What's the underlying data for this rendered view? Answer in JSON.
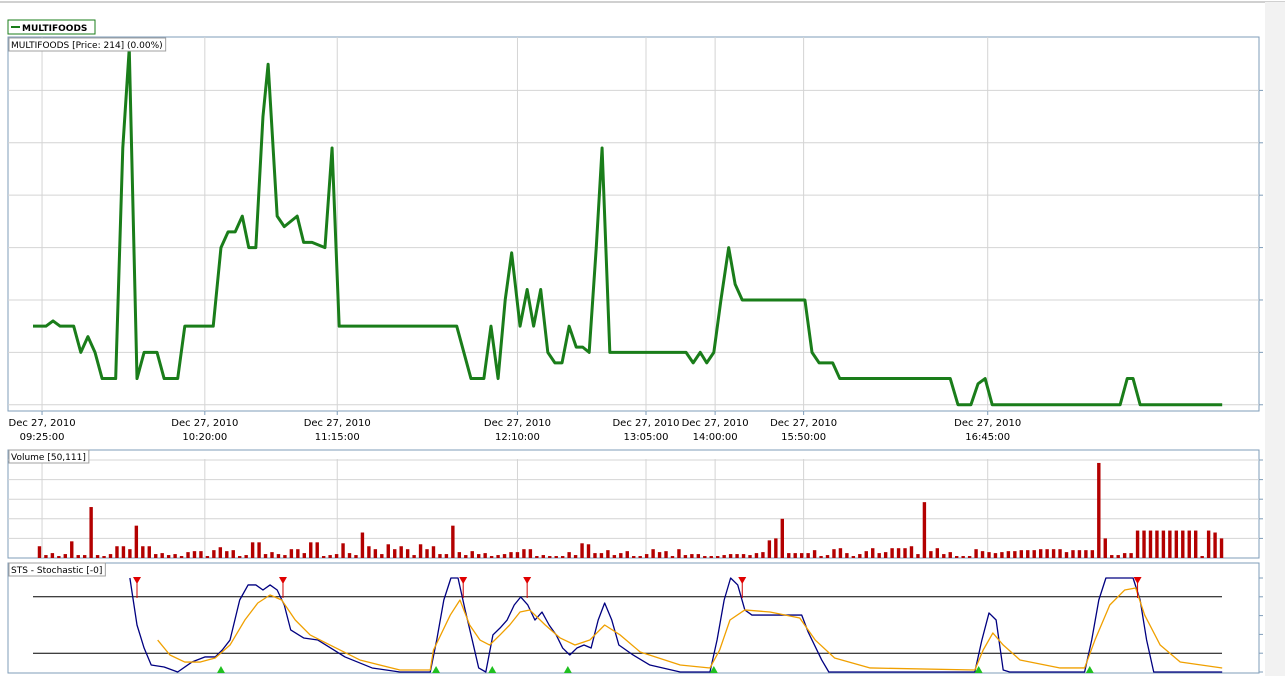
{
  "legend": {
    "name": "MULTIFOODS",
    "color": "#1a7d1a"
  },
  "chart_data": [
    {
      "type": "line",
      "title": "MULTIFOODS [Price: 214] (0.00%)",
      "series": [
        {
          "name": "MULTIFOODS",
          "color": "#1a7d1a",
          "x": [
            -1.0,
            1.0,
            2.1,
            3.2,
            5.3,
            6.4,
            7.5,
            8.6,
            9.7,
            11.8,
            12.9,
            13.9,
            15.1,
            16.2,
            18.2,
            19.3,
            21.4,
            22.5,
            26.9,
            28.1,
            29.2,
            30.3,
            31.4,
            32.4,
            33.5,
            34.6,
            35.4,
            36.8,
            37.9,
            39.9,
            40.9,
            42.2,
            44.2,
            45.3,
            46.4,
            64.6,
            66.8,
            68.8,
            69.9,
            71.0,
            72.1,
            73.1,
            74.4,
            75.5,
            76.5,
            77.6,
            78.7,
            79.8,
            80.9,
            82.0,
            83.1,
            84.1,
            85.1,
            86.2,
            87.1,
            88.3,
            100.1,
            101.2,
            102.3,
            103.3,
            104.4,
            105.5,
            106.7,
            107.7,
            108.8,
            118.5,
            119.6,
            120.7,
            122.8,
            123.9,
            141.0,
            142.2,
            144.2,
            145.3,
            146.4,
            147.5,
            167.3,
            168.4,
            169.3,
            170.4,
            183.1
          ],
          "values": [
            215.5,
            215.5,
            215.6,
            215.5,
            215.5,
            215.0,
            215.3,
            215.0,
            214.5,
            214.5,
            218.9,
            220.8,
            214.5,
            215.0,
            215.0,
            214.5,
            214.5,
            215.5,
            215.5,
            217.0,
            217.3,
            217.3,
            217.6,
            217.0,
            217.0,
            219.5,
            220.5,
            217.6,
            217.4,
            217.6,
            217.1,
            217.1,
            217.0,
            218.9,
            215.5,
            215.5,
            214.5,
            214.5,
            215.5,
            214.5,
            216.0,
            216.9,
            215.5,
            216.2,
            215.5,
            216.2,
            215.0,
            214.8,
            214.8,
            215.5,
            215.1,
            215.1,
            215.0,
            217.0,
            218.9,
            215.0,
            215.0,
            214.8,
            215.0,
            214.8,
            215.0,
            216.0,
            217.0,
            216.3,
            216.0,
            216.0,
            215.0,
            214.8,
            214.8,
            214.5,
            214.5,
            214.0,
            214.0,
            214.4,
            214.5,
            214.0,
            214.0,
            214.5,
            214.5,
            214.0,
            214.0
          ]
        }
      ],
      "xlim": [
        -1,
        184
      ],
      "ylim": [
        213.9,
        221
      ],
      "yticks": [
        214,
        215,
        216,
        217,
        218,
        219,
        220
      ],
      "xticks": [
        {
          "value": 0.4,
          "label": [
            "Dec 27, 2010",
            "09:25:00"
          ]
        },
        {
          "value": 25.6,
          "label": [
            "Dec 27, 2010",
            "10:20:00"
          ]
        },
        {
          "value": 46.1,
          "label": [
            "Dec 27, 2010",
            "11:15:00"
          ]
        },
        {
          "value": 74.0,
          "label": [
            "Dec 27, 2010",
            "12:10:00"
          ]
        },
        {
          "value": 93.9,
          "label": [
            "Dec 27, 2010",
            "13:05:00"
          ]
        },
        {
          "value": 104.6,
          "label": [
            "Dec 27, 2010",
            "14:00:00"
          ]
        },
        {
          "value": 118.3,
          "label": [
            "Dec 27, 2010",
            "15:50:00"
          ]
        },
        {
          "value": 146.8,
          "label": [
            "Dec 27, 2010",
            "16:45:00"
          ]
        }
      ],
      "grid": true
    },
    {
      "type": "bar",
      "title": "Volume [50,111]",
      "color": "#b30000",
      "values": [
        12,
        3,
        5,
        2,
        4,
        17,
        3,
        3,
        52,
        3,
        2,
        4,
        12,
        12,
        9,
        33,
        12,
        12,
        4,
        5,
        3,
        4,
        2,
        6,
        7,
        7,
        2,
        8,
        11,
        7,
        8,
        2,
        3,
        16,
        16,
        4,
        6,
        4,
        3,
        9,
        9,
        5,
        16,
        16,
        2,
        3,
        4,
        15,
        5,
        3,
        26,
        12,
        9,
        4,
        14,
        9,
        12,
        9,
        3,
        14,
        9,
        12,
        4,
        4,
        33,
        6,
        3,
        7,
        4,
        5,
        2,
        3,
        4,
        6,
        6,
        9,
        9,
        2,
        3,
        2,
        2,
        2,
        6,
        3,
        15,
        14,
        5,
        5,
        8,
        3,
        5,
        7,
        2,
        2,
        4,
        9,
        6,
        7,
        2,
        9,
        3,
        4,
        4,
        2,
        2,
        2,
        3,
        4,
        4,
        4,
        3,
        5,
        6,
        18,
        20,
        40,
        5,
        5,
        5,
        5,
        8,
        2,
        3,
        9,
        10,
        5,
        2,
        4,
        7,
        10,
        5,
        6,
        10,
        10,
        10,
        12,
        4,
        57,
        7,
        10,
        4,
        6,
        2,
        2,
        2,
        9,
        7,
        6,
        5,
        6,
        7,
        7,
        8,
        8,
        8,
        9,
        9,
        9,
        9,
        6,
        8,
        8,
        8,
        8,
        97,
        20,
        3,
        3,
        5,
        5,
        28,
        28,
        28,
        28,
        28,
        28,
        28,
        28,
        28,
        28,
        2,
        28,
        26,
        20
      ],
      "xlim": [
        -1,
        184
      ],
      "ylim": [
        0,
        100
      ],
      "yticks": [
        20,
        40,
        60,
        80,
        100
      ]
    },
    {
      "type": "line",
      "title": "STS - Stochastic [-0]",
      "series": [
        {
          "color": "#000080",
          "x": [
            14.0,
            15.1,
            16.2,
            17.3,
            19.3,
            21.4,
            23.6,
            25.6,
            27.2,
            28.3,
            29.5,
            31.0,
            32.3,
            33.5,
            34.6,
            35.7,
            36.8,
            37.9,
            38.9,
            40.9,
            43.1,
            45.1,
            47.3,
            51.5,
            55.8,
            60.5,
            61.5,
            62.6,
            63.7,
            64.8,
            65.9,
            67.0,
            68.0,
            69.1,
            70.2,
            71.3,
            72.4,
            73.5,
            74.5,
            75.6,
            76.7,
            77.8,
            78.9,
            80.0,
            81.0,
            82.1,
            83.2,
            84.3,
            85.4,
            86.5,
            87.5,
            88.6,
            89.7,
            91.9,
            94.5,
            99.2,
            103.8,
            104.9,
            106.0,
            107.0,
            108.1,
            109.2,
            110.3,
            118.0,
            119.0,
            121.1,
            122.2,
            144.8,
            145.9,
            147.0,
            148.1,
            149.2,
            150.2,
            161.8,
            162.9,
            164.0,
            165.1,
            169.3,
            170.4,
            171.4,
            172.5,
            183.1
          ],
          "values": [
            100,
            50,
            25.5,
            7.4,
            5.3,
            0,
            10.6,
            16,
            16,
            23.4,
            34,
            76.6,
            92.6,
            92.6,
            87.2,
            92.6,
            87.2,
            71.3,
            44.7,
            36.2,
            34,
            25.5,
            16,
            4.3,
            0,
            0,
            34,
            76.6,
            100,
            100,
            66,
            34,
            4.3,
            0,
            39.4,
            46.8,
            55.3,
            71.3,
            79.8,
            71.3,
            55.3,
            63.8,
            50,
            39.4,
            25.5,
            18.1,
            25.5,
            28.7,
            25.5,
            55.3,
            73.4,
            55.3,
            28.7,
            18.1,
            7.4,
            0,
            0,
            34,
            76.6,
            100,
            92.6,
            66,
            60.6,
            60.6,
            42.6,
            12.8,
            0,
            0,
            34,
            62.8,
            55.3,
            2.1,
            0,
            0,
            34,
            76.6,
            100,
            100,
            76.6,
            34,
            0,
            0
          ]
        },
        {
          "color": "#f0a000",
          "x": [
            18.3,
            20.2,
            22.5,
            24.9,
            27.2,
            29.5,
            31.8,
            33.8,
            35.7,
            37.5,
            39.6,
            41.9,
            45.0,
            49.6,
            55.8,
            60.5,
            61.0,
            63.6,
            65.1,
            66.6,
            68.2,
            69.7,
            71.3,
            72.8,
            74.4,
            75.9,
            78.3,
            80.6,
            82.9,
            85.2,
            87.5,
            89.9,
            93.0,
            99.2,
            103.8,
            105.3,
            106.9,
            109.2,
            113.1,
            117.7,
            120.1,
            123.1,
            128.6,
            144.8,
            146.1,
            147.6,
            149.2,
            151.8,
            158.0,
            161.8,
            163.4,
            165.7,
            168.0,
            169.7,
            171.1,
            173.5,
            176.6,
            183.1
          ],
          "values": [
            34,
            18.1,
            10.6,
            10.6,
            14.9,
            28.7,
            55.3,
            73.4,
            81.9,
            76.6,
            55.3,
            39.4,
            28.7,
            12.8,
            2.1,
            2.1,
            23.4,
            60.6,
            76.6,
            50,
            34,
            28.7,
            39.4,
            50,
            63.8,
            66,
            50,
            36.2,
            28.7,
            34,
            50,
            39.4,
            21.3,
            7.4,
            4.3,
            23.4,
            55.3,
            66,
            63.8,
            57.4,
            34,
            14.9,
            4.3,
            2.1,
            23.4,
            41.5,
            28.7,
            12.8,
            4.3,
            4.3,
            34,
            71.3,
            87.2,
            89.4,
            60.6,
            28.7,
            10.6,
            4.3
          ]
        }
      ],
      "levels": [
        80,
        20
      ],
      "sell_signals": [
        15.1,
        37.7,
        65.6,
        75.5,
        108.8,
        170.0
      ],
      "buy_signals": [
        28.1,
        61.4,
        70.1,
        81.8,
        104.4,
        145.4,
        162.6
      ],
      "xlim": [
        -1,
        184
      ],
      "ylim": [
        0,
        100
      ],
      "yticks": [
        0,
        20,
        40,
        60,
        80,
        100
      ]
    }
  ]
}
